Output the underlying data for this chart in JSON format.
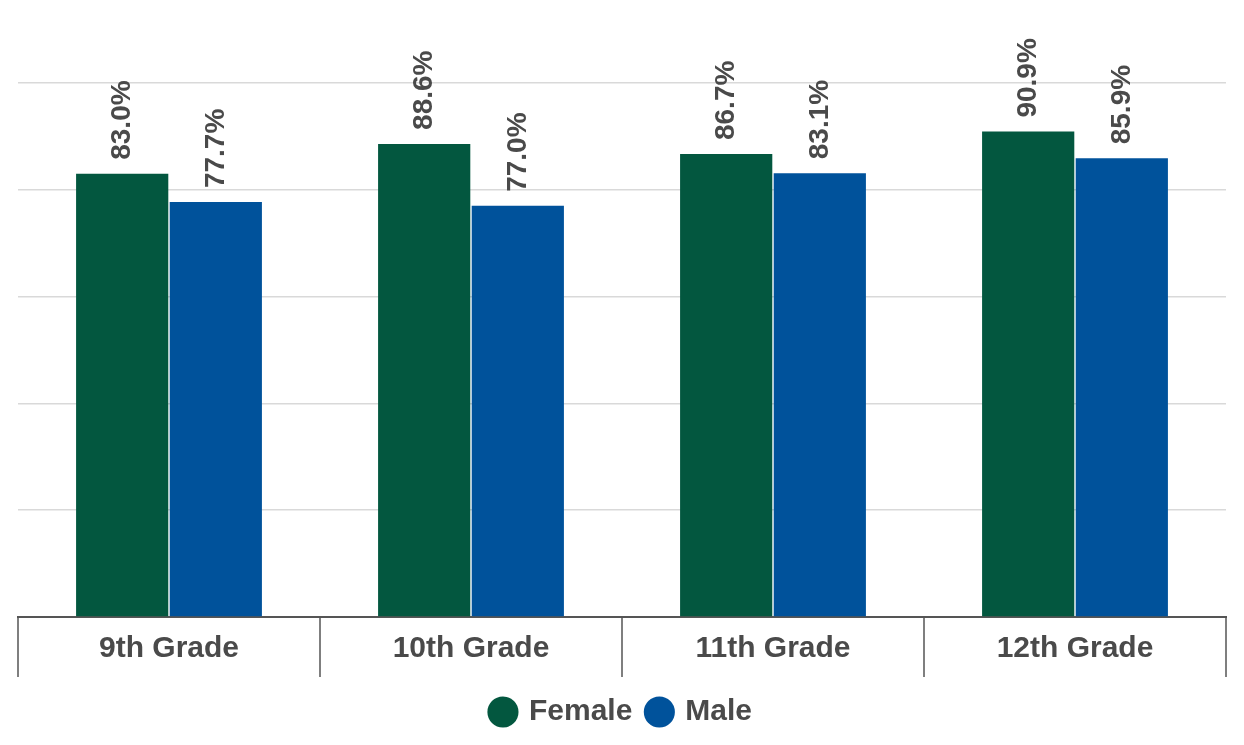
{
  "chart_data": {
    "type": "bar",
    "categories": [
      "9th Grade",
      "10th Grade",
      "11th Grade",
      "12th Grade"
    ],
    "series": [
      {
        "name": "Female",
        "color": "#03573f",
        "values": [
          83.0,
          88.6,
          86.7,
          90.9
        ],
        "value_labels": [
          "83.0%",
          "88.6%",
          "86.7%",
          "90.9%"
        ]
      },
      {
        "name": "Male",
        "color": "#00529b",
        "values": [
          77.7,
          77.0,
          83.1,
          85.9
        ],
        "value_labels": [
          "77.7%",
          "77.0%",
          "83.1%",
          "85.9%"
        ]
      }
    ],
    "yticks": [
      {
        "value": 0,
        "label": null
      },
      {
        "value": 20,
        "label": null
      },
      {
        "value": 40,
        "label": null
      },
      {
        "value": 60,
        "label": null
      },
      {
        "value": 80,
        "label": null
      },
      {
        "value": 100,
        "label": null
      }
    ],
    "grid": "y",
    "legend": "bottom",
    "marker": "circle",
    "tick_labels": "x"
  }
}
